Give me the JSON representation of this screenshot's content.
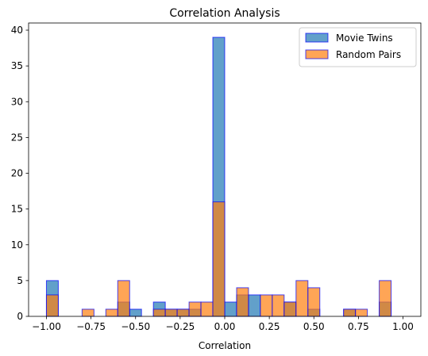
{
  "chart_data": {
    "type": "histogram",
    "title": "Correlation Analysis",
    "xlabel": "Correlation",
    "ylabel": "",
    "xlim": [
      -1.1,
      1.1
    ],
    "ylim": [
      0,
      41
    ],
    "xticks": [
      -1.0,
      -0.75,
      -0.5,
      -0.25,
      0.0,
      0.25,
      0.5,
      0.75,
      1.0
    ],
    "xtick_labels": [
      "−1.00",
      "−0.75",
      "−0.50",
      "−0.25",
      "0.00",
      "0.25",
      "0.50",
      "0.75",
      "1.00"
    ],
    "yticks": [
      0,
      5,
      10,
      15,
      20,
      25,
      30,
      35,
      40
    ],
    "ytick_labels": [
      "0",
      "5",
      "10",
      "15",
      "20",
      "25",
      "30",
      "35",
      "40"
    ],
    "bin_edges": [
      -1.0,
      -0.9333,
      -0.8667,
      -0.8,
      -0.7333,
      -0.6667,
      -0.6,
      -0.5333,
      -0.4667,
      -0.4,
      -0.3333,
      -0.2667,
      -0.2,
      -0.1333,
      -0.0667,
      0.0,
      0.0667,
      0.1333,
      0.2,
      0.2667,
      0.3333,
      0.4,
      0.4667,
      0.5333,
      0.6,
      0.6667,
      0.7333,
      0.8,
      0.8667,
      0.9333,
      1.0
    ],
    "series": [
      {
        "name": "Movie Twins",
        "color": "#1f77b4",
        "values": [
          5,
          0,
          0,
          0,
          0,
          0,
          2,
          1,
          0,
          2,
          1,
          1,
          1,
          0,
          39,
          2,
          3,
          3,
          0,
          0,
          2,
          0,
          1,
          0,
          0,
          1,
          0,
          0,
          2,
          0
        ]
      },
      {
        "name": "Random Pairs",
        "color": "#ff7f0e",
        "values": [
          3,
          0,
          0,
          1,
          0,
          1,
          5,
          0,
          0,
          1,
          1,
          1,
          2,
          2,
          16,
          0,
          4,
          0,
          3,
          3,
          2,
          5,
          4,
          0,
          0,
          1,
          1,
          0,
          5,
          0
        ]
      }
    ],
    "bar_alpha": 0.7,
    "edge_color": "#0000ff",
    "legend_position": "top-right",
    "grid": false
  }
}
